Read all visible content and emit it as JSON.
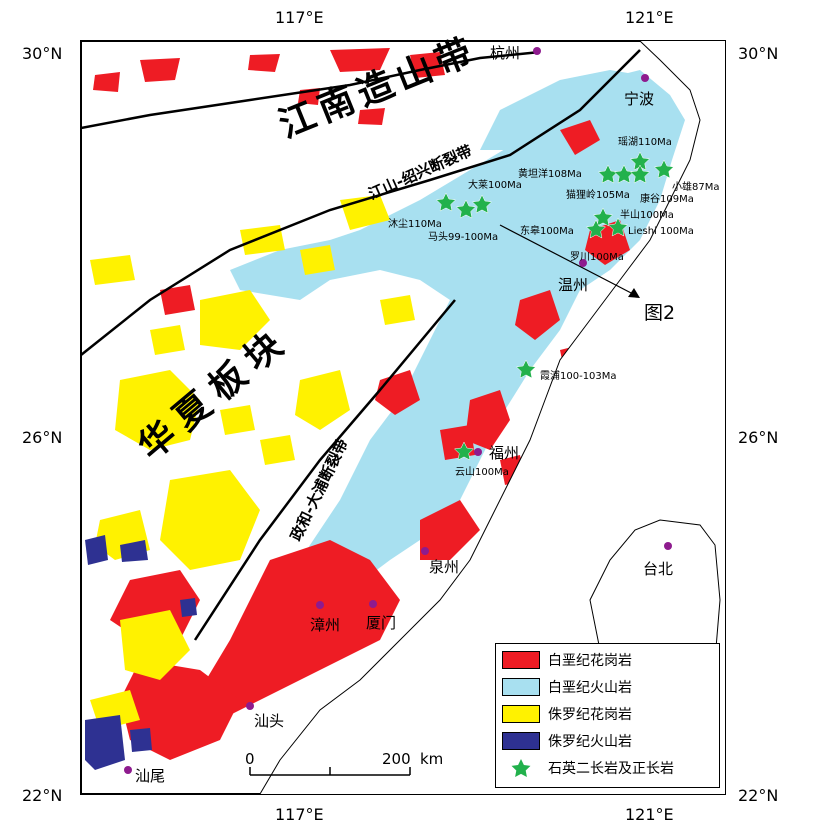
{
  "map": {
    "lon_labels": [
      "117°E",
      "121°E"
    ],
    "lat_labels": [
      "30°N",
      "26°N",
      "22°N"
    ],
    "regions": {
      "jiangnan": "江南造山带",
      "huaxia": "华夏板块"
    },
    "faults": {
      "jiangshan": "江山-绍兴断裂带",
      "zhenghe": "政和-大浦断裂带"
    },
    "cities": {
      "hangzhou": "杭州",
      "ningbo": "宁波",
      "wenzhou": "温州",
      "fuzhou": "福州",
      "quanzhou": "泉州",
      "zhangzhou": "漳州",
      "xiamen": "厦门",
      "shantou": "汕头",
      "shanwei": "汕尾",
      "taibei": "台北"
    },
    "sites": {
      "yaohu": "瑶湖110Ma",
      "huangtanyang": "黄坦洋108Ma",
      "maolingling": "猫狸岭105Ma",
      "xiaoxiong": "小雄87Ma",
      "kanggu": "康谷109Ma",
      "dalai": "大莱100Ma",
      "banshan": "半山100Ma",
      "muchen": "沐尘110Ma",
      "matou": "马头99-100Ma",
      "dongbu": "东皋100Ma",
      "lieshi": "Lieshi 100Ma",
      "luochuan": "罗川100Ma",
      "xiapu": "霞浦100-103Ma",
      "yunshan": "云山100Ma"
    },
    "figure_ref": "图2",
    "scale": {
      "zero": "0",
      "max": "200",
      "unit": "km"
    }
  },
  "legend": {
    "items": [
      {
        "label": "白垩纪花岗岩",
        "color": "#ee1c24"
      },
      {
        "label": "白垩纪火山岩",
        "color": "#a8e0f0"
      },
      {
        "label": "侏罗纪花岗岩",
        "color": "#fff200"
      },
      {
        "label": "侏罗纪火山岩",
        "color": "#2e3192"
      },
      {
        "label": "石英二长岩及正长岩",
        "color": "#22b14c"
      }
    ]
  }
}
